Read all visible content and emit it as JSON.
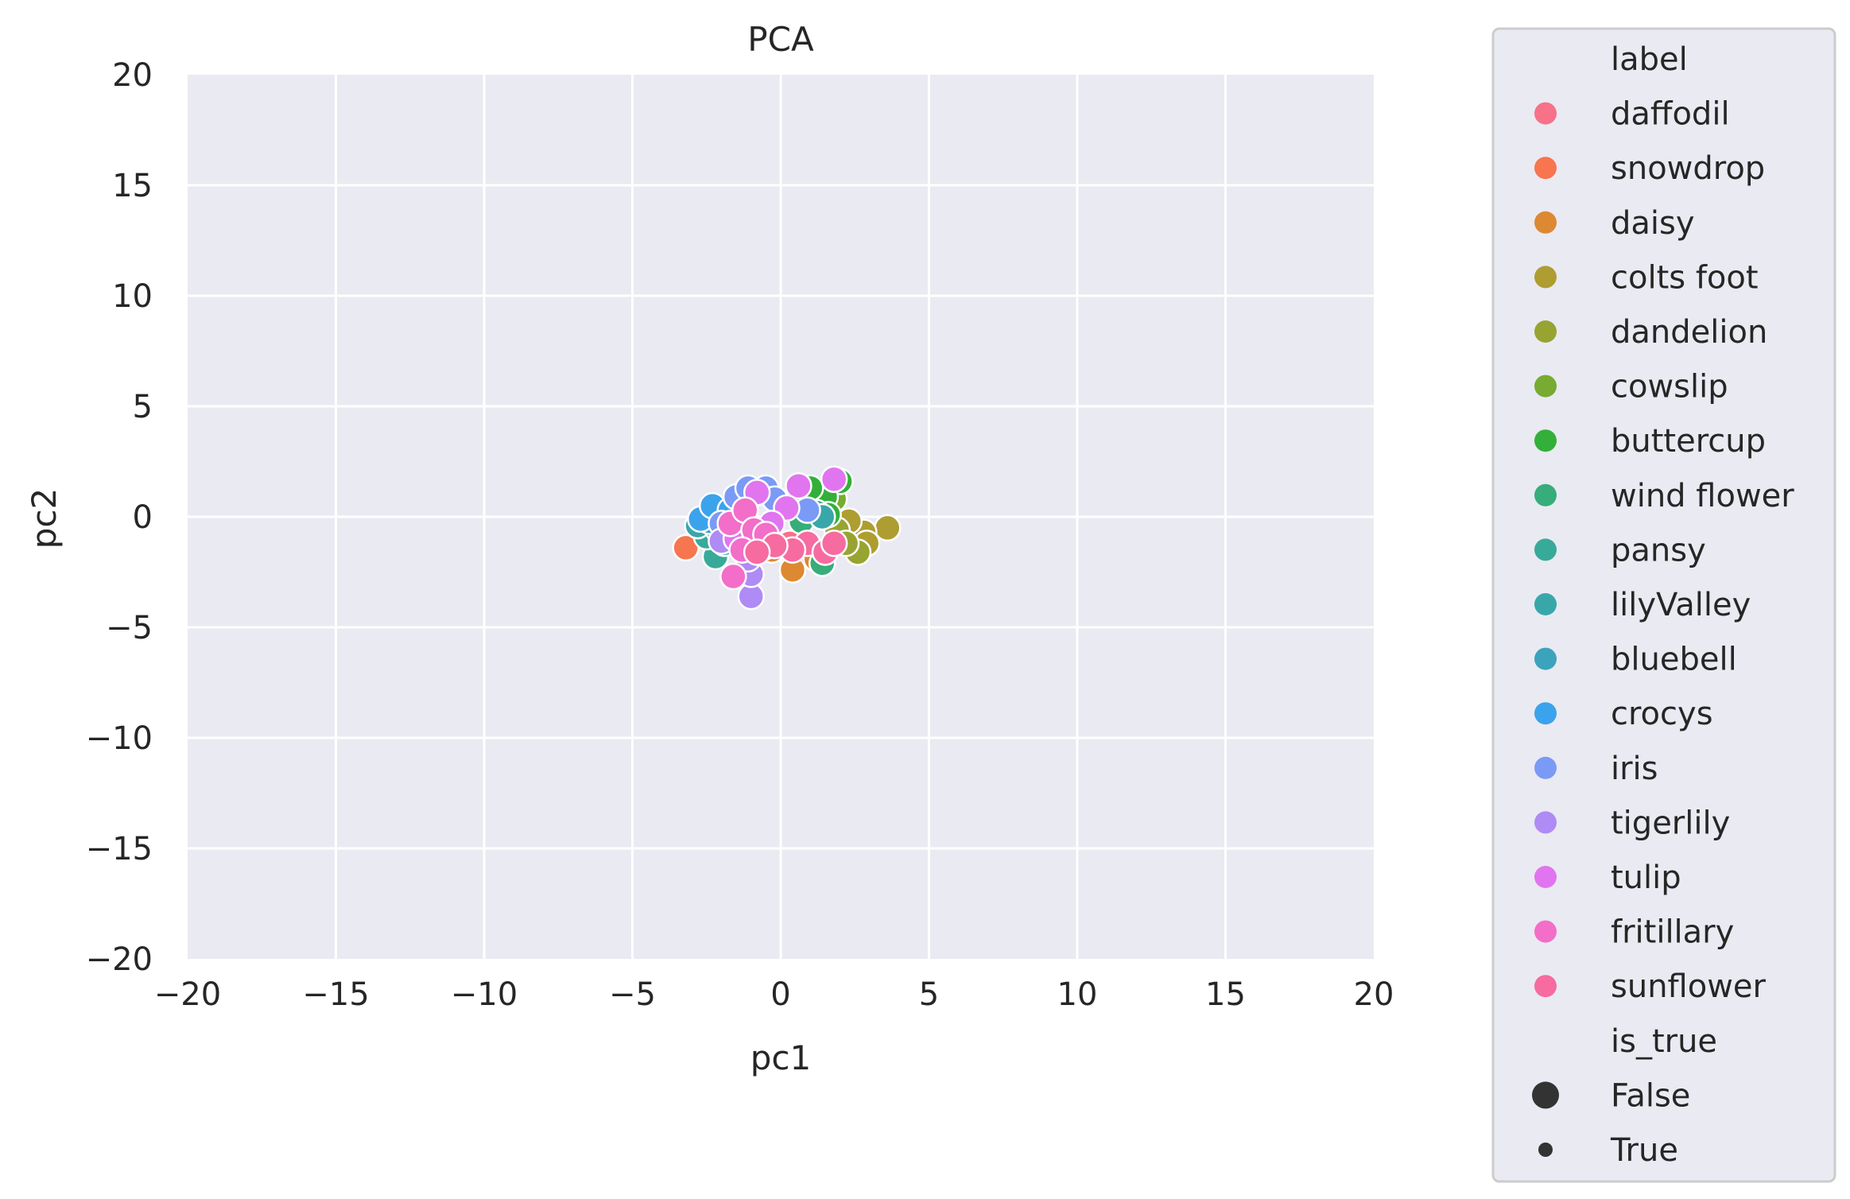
{
  "chart_data": {
    "type": "scatter",
    "title": "PCA",
    "xlabel": "pc1",
    "ylabel": "pc2",
    "xlim": [
      -20,
      20
    ],
    "ylim": [
      -20,
      20
    ],
    "xticks": [
      -20,
      -15,
      -10,
      -5,
      0,
      5,
      10,
      15,
      20
    ],
    "yticks": [
      -20,
      -15,
      -10,
      -5,
      0,
      5,
      10,
      15,
      20
    ],
    "xtick_labels": [
      "−20",
      "−15",
      "−10",
      "−5",
      "0",
      "5",
      "10",
      "15",
      "20"
    ],
    "ytick_labels": [
      "−20",
      "−15",
      "−10",
      "−5",
      "0",
      "5",
      "10",
      "15",
      "20"
    ],
    "grid": true,
    "background": "#eaeaf2",
    "legend_position": "outside-right",
    "legend": {
      "hue_title": "label",
      "size_title": "is_true",
      "size_entries": [
        {
          "name": "False",
          "size": "large"
        },
        {
          "name": "True",
          "size": "small"
        }
      ]
    },
    "series": [
      {
        "name": "daffodil",
        "color": "#f77189",
        "points": [
          [
            0.3,
            -1.2
          ],
          [
            -0.4,
            -0.9
          ],
          [
            0.8,
            -1.6
          ]
        ]
      },
      {
        "name": "snowdrop",
        "color": "#f7754f",
        "points": [
          [
            -3.2,
            -1.4
          ],
          [
            -1.0,
            -0.5
          ]
        ]
      },
      {
        "name": "daisy",
        "color": "#dc8932",
        "points": [
          [
            0.4,
            -2.4
          ],
          [
            1.2,
            -1.9
          ],
          [
            -0.3,
            -1.5
          ]
        ]
      },
      {
        "name": "colts foot",
        "color": "#ae9d31",
        "points": [
          [
            3.6,
            -0.5
          ],
          [
            2.8,
            -0.7
          ],
          [
            2.3,
            -0.2
          ],
          [
            2.9,
            -1.2
          ],
          [
            2.0,
            -1.0
          ]
        ]
      },
      {
        "name": "dandelion",
        "color": "#97a431",
        "points": [
          [
            2.6,
            -1.6
          ],
          [
            1.9,
            -0.6
          ],
          [
            2.2,
            -1.2
          ]
        ]
      },
      {
        "name": "cowslip",
        "color": "#77ab31",
        "points": [
          [
            1.8,
            0.8
          ],
          [
            1.2,
            0.5
          ],
          [
            0.6,
            1.1
          ]
        ]
      },
      {
        "name": "buttercup",
        "color": "#33b039",
        "points": [
          [
            2.0,
            1.6
          ],
          [
            1.5,
            0.9
          ],
          [
            1.0,
            1.3
          ],
          [
            1.6,
            0.1
          ]
        ]
      },
      {
        "name": "wind flower",
        "color": "#36ad7a",
        "points": [
          [
            1.2,
            0.2
          ],
          [
            1.4,
            -2.1
          ],
          [
            0.7,
            -0.2
          ]
        ]
      },
      {
        "name": "pansy",
        "color": "#38aa9a",
        "points": [
          [
            -2.2,
            -1.8
          ],
          [
            -2.5,
            -0.9
          ],
          [
            -1.9,
            -1.2
          ]
        ]
      },
      {
        "name": "lilyValley",
        "color": "#39a7aa",
        "points": [
          [
            -2.8,
            -0.4
          ],
          [
            -2.1,
            -0.6
          ],
          [
            1.4,
            0.0
          ]
        ]
      },
      {
        "name": "bluebell",
        "color": "#3ba3bc",
        "points": [
          [
            -2.4,
            -0.2
          ],
          [
            -1.8,
            0.1
          ]
        ]
      },
      {
        "name": "crocys",
        "color": "#3ba3ec",
        "points": [
          [
            -2.7,
            -0.1
          ],
          [
            -2.3,
            0.5
          ],
          [
            -1.7,
            0.3
          ]
        ]
      },
      {
        "name": "iris",
        "color": "#7a9af6",
        "points": [
          [
            -1.5,
            0.9
          ],
          [
            -1.1,
            1.3
          ],
          [
            -0.5,
            1.3
          ],
          [
            0.9,
            0.3
          ],
          [
            -2.0,
            -0.3
          ],
          [
            -1.2,
            0.2
          ],
          [
            -0.2,
            0.8
          ]
        ]
      },
      {
        "name": "tigerlily",
        "color": "#ae8bf5",
        "points": [
          [
            -1.0,
            -3.6
          ],
          [
            -1.0,
            -2.6
          ],
          [
            -2.0,
            -1.1
          ],
          [
            -1.1,
            -1.9
          ],
          [
            -0.6,
            -1.4
          ]
        ]
      },
      {
        "name": "tulip",
        "color": "#e175ef",
        "points": [
          [
            1.8,
            1.7
          ],
          [
            0.6,
            1.4
          ],
          [
            0.2,
            0.4
          ],
          [
            -0.8,
            1.1
          ],
          [
            -0.3,
            -0.3
          ],
          [
            -1.5,
            -1.0
          ]
        ]
      },
      {
        "name": "fritillary",
        "color": "#f26ec9",
        "points": [
          [
            -1.6,
            -2.7
          ],
          [
            -1.7,
            -0.3
          ],
          [
            -1.2,
            0.3
          ],
          [
            -0.9,
            -0.6
          ],
          [
            -1.3,
            -1.5
          ],
          [
            -0.5,
            -0.8
          ]
        ]
      },
      {
        "name": "sunflower",
        "color": "#f66ba0",
        "points": [
          [
            0.9,
            -1.2
          ],
          [
            0.4,
            -1.5
          ],
          [
            1.5,
            -1.6
          ],
          [
            1.8,
            -1.2
          ],
          [
            -0.2,
            -1.3
          ],
          [
            -0.8,
            -1.6
          ]
        ]
      }
    ]
  }
}
